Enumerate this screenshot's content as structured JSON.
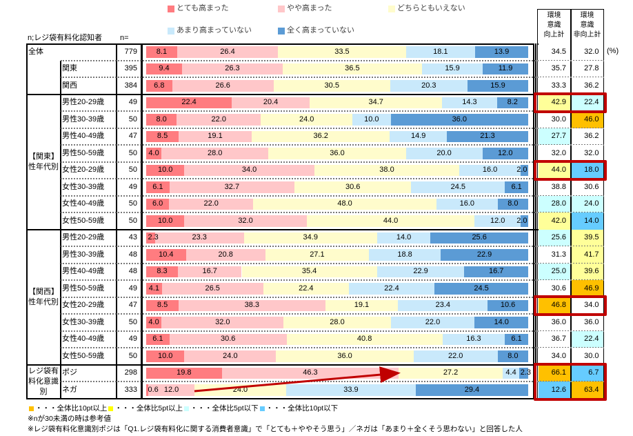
{
  "chart_data": {
    "type": "bar",
    "subtype": "stacked-horizontal-100",
    "unit": "(%)",
    "base_label": "n;レジ袋有料化認知者",
    "n_header": "n=",
    "legend": [
      {
        "label": "とても高まった",
        "color": "#ff7c80"
      },
      {
        "label": "やや高まった",
        "color": "#ffc7c9"
      },
      {
        "label": "どちらともいえない",
        "color": "#fffccc"
      },
      {
        "label": "あまり高まっていない",
        "color": "#c9e9fb"
      },
      {
        "label": "全く高まっていない",
        "color": "#5b9bd5"
      }
    ],
    "summary_headers": [
      {
        "lines": [
          "環境",
          "意識",
          "向上計"
        ]
      },
      {
        "lines": [
          "環境",
          "意識",
          "非向上計"
        ]
      }
    ],
    "groups": [
      {
        "label": "全体",
        "label_lines": [
          "全体"
        ]
      },
      {
        "label": "【関東】性年代別",
        "label_lines": [
          "【関東】",
          "性年代別"
        ]
      },
      {
        "label": "【関西】性年代別",
        "label_lines": [
          "【関西】",
          "性年代別"
        ]
      },
      {
        "label": "レジ袋有料化意識別",
        "label_lines": [
          "レジ袋有",
          "料化意識",
          "別"
        ]
      }
    ],
    "rows": [
      {
        "group": 0,
        "label": "全体",
        "n": "779",
        "values": [
          8.1,
          26.4,
          33.5,
          18.1,
          13.9
        ],
        "labels": [
          "8.1",
          "26.4",
          "33.5",
          "18.1",
          "13.9"
        ],
        "up": "34.5",
        "nonup": "32.0",
        "up_hl": "none",
        "nonup_hl": "none"
      },
      {
        "group": 0,
        "label": "関東",
        "n": "395",
        "values": [
          9.4,
          26.3,
          36.5,
          15.9,
          11.9
        ],
        "labels": [
          "9.4",
          "26.3",
          "36.5",
          "15.9",
          "11.9"
        ],
        "up": "35.7",
        "nonup": "27.8",
        "up_hl": "none",
        "nonup_hl": "none"
      },
      {
        "group": 0,
        "label": "関西",
        "n": "384",
        "values": [
          6.8,
          26.6,
          30.5,
          20.3,
          15.9
        ],
        "labels": [
          "6.8",
          "26.6",
          "30.5",
          "20.3",
          "15.9"
        ],
        "up": "33.3",
        "nonup": "36.2",
        "up_hl": "none",
        "nonup_hl": "none"
      },
      {
        "group": 1,
        "label": "男性20-29歳",
        "n": "49",
        "values": [
          22.4,
          20.4,
          34.7,
          14.3,
          8.2
        ],
        "labels": [
          "22.4",
          "20.4",
          "34.7",
          "14.3",
          "8.2"
        ],
        "up": "42.9",
        "nonup": "22.4",
        "up_hl": "plus5",
        "nonup_hl": "minus5"
      },
      {
        "group": 1,
        "label": "男性30-39歳",
        "n": "50",
        "values": [
          8.0,
          22.0,
          24.0,
          10.0,
          36.0
        ],
        "labels": [
          "8.0",
          "22.0",
          "24.0",
          "10.0",
          "36.0"
        ],
        "up": "30.0",
        "nonup": "46.0",
        "up_hl": "none",
        "nonup_hl": "plus10"
      },
      {
        "group": 1,
        "label": "男性40-49歳",
        "n": "47",
        "values": [
          8.5,
          19.1,
          36.2,
          14.9,
          21.3
        ],
        "labels": [
          "8.5",
          "19.1",
          "36.2",
          "14.9",
          "21.3"
        ],
        "up": "27.7",
        "nonup": "36.2",
        "up_hl": "minus5",
        "nonup_hl": "none"
      },
      {
        "group": 1,
        "label": "男性50-59歳",
        "n": "50",
        "values": [
          4.0,
          28.0,
          36.0,
          20.0,
          12.0
        ],
        "labels": [
          "4.0",
          "28.0",
          "36.0",
          "20.0",
          "12.0"
        ],
        "up": "32.0",
        "nonup": "32.0",
        "up_hl": "none",
        "nonup_hl": "none"
      },
      {
        "group": 1,
        "label": "女性20-29歳",
        "n": "50",
        "values": [
          10.0,
          34.0,
          38.0,
          16.0,
          2.0
        ],
        "labels": [
          "10.0",
          "34.0",
          "38.0",
          "16.0",
          "2.0"
        ],
        "up": "44.0",
        "nonup": "18.0",
        "up_hl": "plus5",
        "nonup_hl": "minus10"
      },
      {
        "group": 1,
        "label": "女性30-39歳",
        "n": "49",
        "values": [
          6.1,
          32.7,
          30.6,
          24.5,
          6.1
        ],
        "labels": [
          "6.1",
          "32.7",
          "30.6",
          "24.5",
          "6.1"
        ],
        "up": "38.8",
        "nonup": "30.6",
        "up_hl": "none",
        "nonup_hl": "none"
      },
      {
        "group": 1,
        "label": "女性40-49歳",
        "n": "50",
        "values": [
          6.0,
          22.0,
          48.0,
          16.0,
          8.0
        ],
        "labels": [
          "6.0",
          "22.0",
          "48.0",
          "16.0",
          "8.0"
        ],
        "up": "28.0",
        "nonup": "24.0",
        "up_hl": "minus5",
        "nonup_hl": "minus5"
      },
      {
        "group": 1,
        "label": "女性50-59歳",
        "n": "50",
        "values": [
          10.0,
          32.0,
          44.0,
          12.0,
          2.0
        ],
        "labels": [
          "10.0",
          "32.0",
          "44.0",
          "12.0",
          "2.0"
        ],
        "up": "42.0",
        "nonup": "14.0",
        "up_hl": "plus5",
        "nonup_hl": "minus10"
      },
      {
        "group": 2,
        "label": "男性20-29歳",
        "n": "43",
        "values": [
          2.3,
          23.3,
          34.9,
          14.0,
          25.6
        ],
        "labels": [
          "2.3",
          "23.3",
          "34.9",
          "14.0",
          "25.6"
        ],
        "up": "25.6",
        "nonup": "39.5",
        "up_hl": "minus5",
        "nonup_hl": "plus5"
      },
      {
        "group": 2,
        "label": "男性30-39歳",
        "n": "48",
        "values": [
          10.4,
          20.8,
          27.1,
          18.8,
          22.9
        ],
        "labels": [
          "10.4",
          "20.8",
          "27.1",
          "18.8",
          "22.9"
        ],
        "up": "31.3",
        "nonup": "41.7",
        "up_hl": "none",
        "nonup_hl": "plus5"
      },
      {
        "group": 2,
        "label": "男性40-49歳",
        "n": "48",
        "values": [
          8.3,
          16.7,
          35.4,
          22.9,
          16.7
        ],
        "labels": [
          "8.3",
          "16.7",
          "35.4",
          "22.9",
          "16.7"
        ],
        "up": "25.0",
        "nonup": "39.6",
        "up_hl": "minus5",
        "nonup_hl": "plus5"
      },
      {
        "group": 2,
        "label": "男性50-59歳",
        "n": "49",
        "values": [
          4.1,
          26.5,
          22.4,
          22.4,
          24.5
        ],
        "labels": [
          "4.1",
          "26.5",
          "22.4",
          "22.4",
          "24.5"
        ],
        "up": "30.6",
        "nonup": "46.9",
        "up_hl": "none",
        "nonup_hl": "plus10"
      },
      {
        "group": 2,
        "label": "女性20-29歳",
        "n": "47",
        "values": [
          8.5,
          38.3,
          19.1,
          23.4,
          10.6
        ],
        "labels": [
          "8.5",
          "38.3",
          "19.1",
          "23.4",
          "10.6"
        ],
        "up": "46.8",
        "nonup": "34.0",
        "up_hl": "plus10",
        "nonup_hl": "none"
      },
      {
        "group": 2,
        "label": "女性30-39歳",
        "n": "50",
        "values": [
          4.0,
          32.0,
          28.0,
          22.0,
          14.0
        ],
        "labels": [
          "4.0",
          "32.0",
          "28.0",
          "22.0",
          "14.0"
        ],
        "up": "36.0",
        "nonup": "36.0",
        "up_hl": "none",
        "nonup_hl": "none"
      },
      {
        "group": 2,
        "label": "女性40-49歳",
        "n": "49",
        "values": [
          6.1,
          30.6,
          40.8,
          16.3,
          6.1
        ],
        "labels": [
          "6.1",
          "30.6",
          "40.8",
          "16.3",
          "6.1"
        ],
        "up": "36.7",
        "nonup": "22.4",
        "up_hl": "none",
        "nonup_hl": "minus5"
      },
      {
        "group": 2,
        "label": "女性50-59歳",
        "n": "50",
        "values": [
          10.0,
          24.0,
          36.0,
          22.0,
          8.0
        ],
        "labels": [
          "10.0",
          "24.0",
          "36.0",
          "22.0",
          "8.0"
        ],
        "up": "34.0",
        "nonup": "30.0",
        "up_hl": "none",
        "nonup_hl": "none"
      },
      {
        "group": 3,
        "label": "ポジ",
        "n": "298",
        "values": [
          19.8,
          46.3,
          27.2,
          4.4,
          2.3
        ],
        "labels": [
          "19.8",
          "46.3",
          "27.2",
          "4.4",
          "2.3"
        ],
        "up": "66.1",
        "nonup": "6.7",
        "up_hl": "plus10",
        "nonup_hl": "minus10"
      },
      {
        "group": 3,
        "label": "ネガ",
        "n": "333",
        "values": [
          0.6,
          12.0,
          24.0,
          33.9,
          29.4
        ],
        "labels": [
          "0.6",
          "12.0",
          "24.0",
          "33.9",
          "29.4"
        ],
        "up": "12.6",
        "nonup": "63.4",
        "up_hl": "minus10",
        "nonup_hl": "plus10"
      }
    ],
    "highlighted_rows": [
      3,
      7,
      15,
      19,
      20
    ],
    "annotation_arrow": "ネガ→ポジ の上昇を示す赤い矢印"
  },
  "highlight_colors": {
    "plus10": "#ffc000",
    "plus5": "#ffff99",
    "minus5": "#ccffff",
    "minus10": "#66ccff",
    "none": "#ffffff"
  },
  "footnotes": {
    "highlight_legend": [
      {
        "key": "plus10",
        "text": "・・・全体比10pt以上"
      },
      {
        "key": "plus5",
        "text": "・・・全体比5pt以上"
      },
      {
        "key": "minus5",
        "text": "・・・全体比5pt以下"
      },
      {
        "key": "minus10",
        "text": "・・・全体比10pt以下"
      }
    ],
    "note1": "※nが30未満の時は参考値",
    "note2": "※レジ袋有料化意識別ポジは「Q1.レジ袋有料化に関する消費者意識」で「とても＋ややそう思う」／ネガは「あまり＋全くそう思わない」と回答した人"
  }
}
